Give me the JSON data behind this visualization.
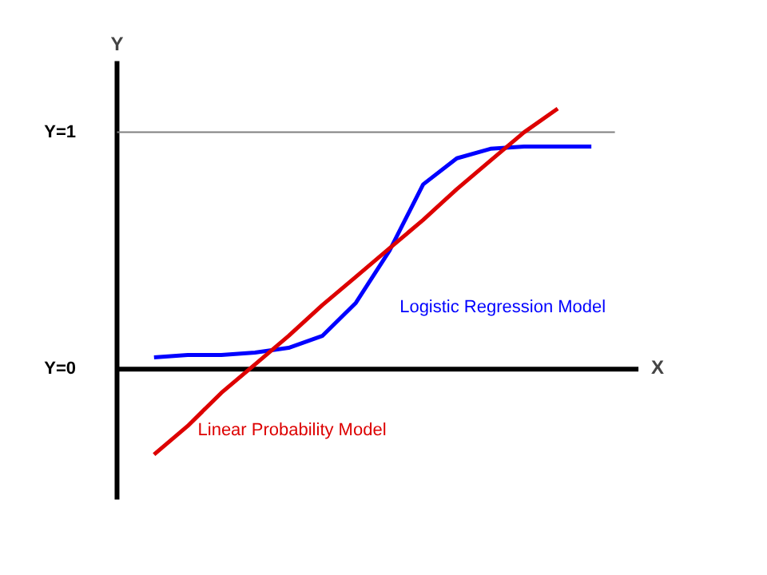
{
  "chart_data": {
    "type": "line",
    "xlabel": "X",
    "ylabel": "Y",
    "categories": [
      null,
      null,
      null,
      null,
      null,
      null,
      null,
      null,
      null,
      null,
      null,
      null,
      null,
      null
    ],
    "series": [
      {
        "name": "Logistic Regression Model",
        "color": "#0000ff",
        "values": [
          0.05,
          0.06,
          0.06,
          0.07,
          0.09,
          0.14,
          0.28,
          0.5,
          0.78,
          0.89,
          0.93,
          0.94,
          0.94,
          0.94
        ]
      },
      {
        "name": "Linear Probability Model",
        "color": "#dd0000",
        "values": [
          -0.36,
          -0.24,
          -0.1,
          0.02,
          0.14,
          0.27,
          0.39,
          0.51,
          0.63,
          0.76,
          0.88,
          1.0,
          1.1,
          null
        ]
      }
    ],
    "ylim": [
      -0.55,
      1.3
    ],
    "yticks": [
      {
        "value": 0,
        "label": "Y=0"
      },
      {
        "value": 1,
        "label": "Y=1"
      }
    ],
    "ref_lines": [
      {
        "axis": "y",
        "value": 1,
        "color": "#808080"
      }
    ],
    "tick_labels": "y",
    "grid": false,
    "marker": "none",
    "line_style": "solid"
  }
}
